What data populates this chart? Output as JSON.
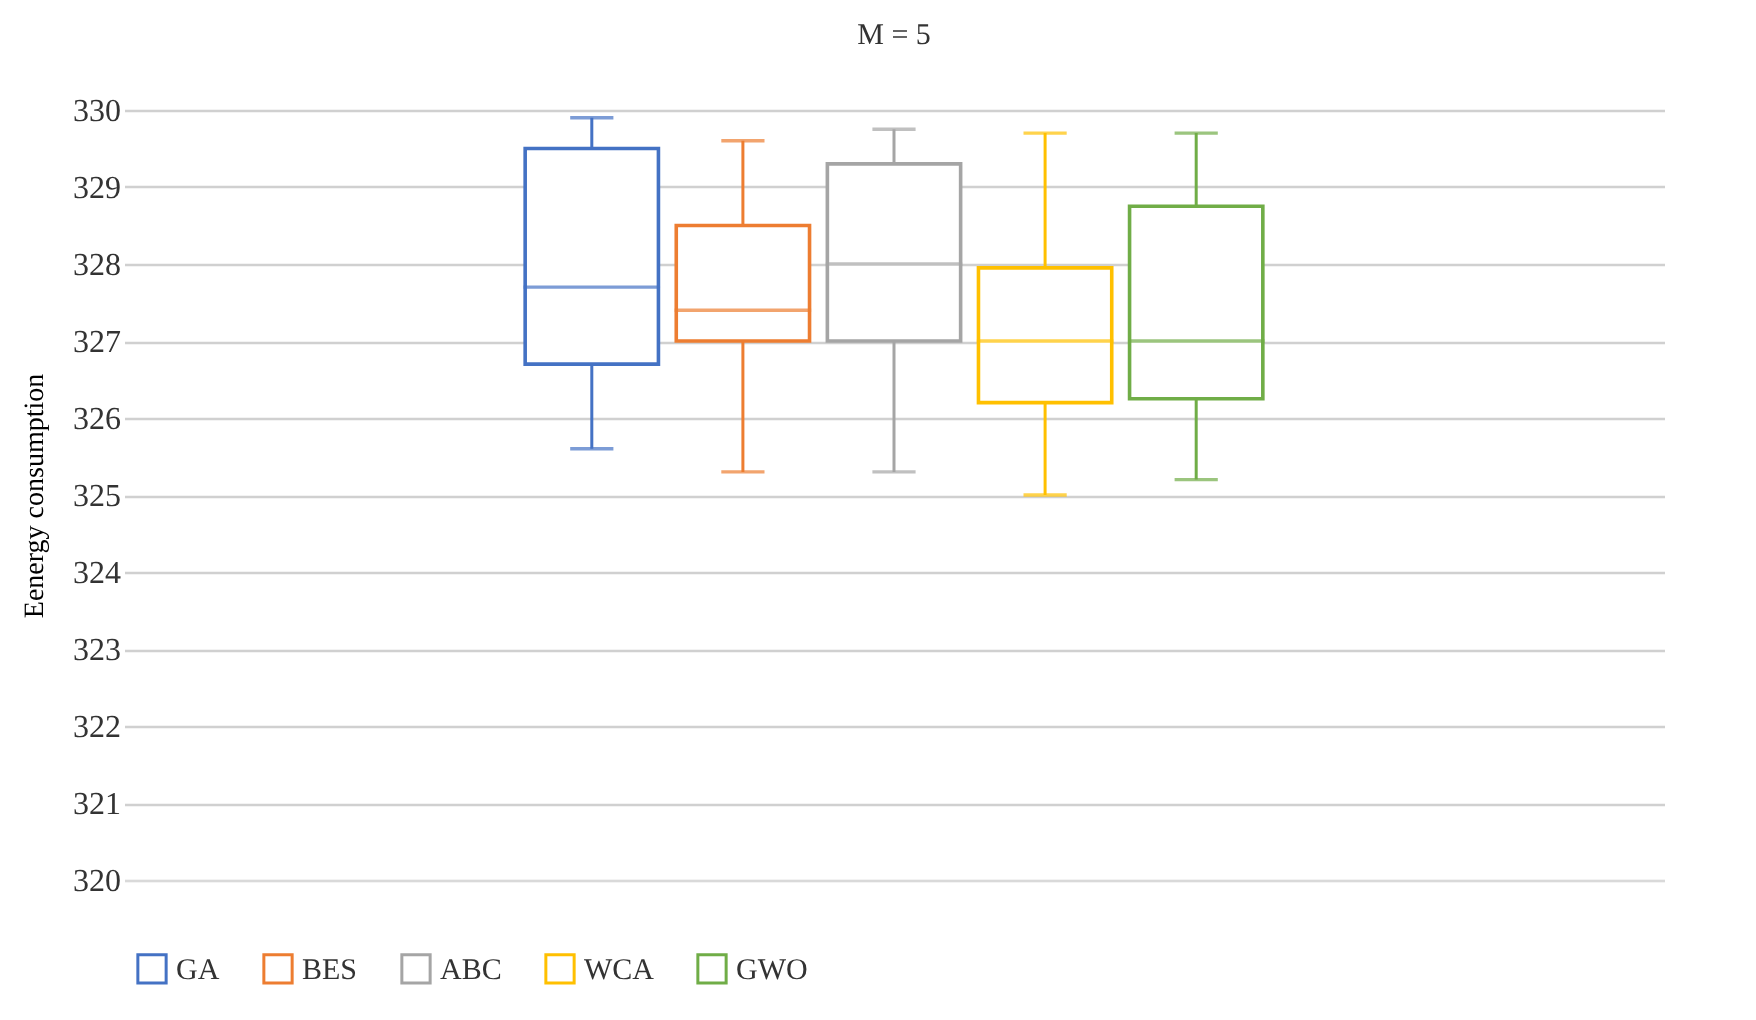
{
  "chart_data": {
    "type": "box",
    "title": "M = 5",
    "ylabel": "Eenergy consumption",
    "categories": [
      null
    ],
    "series": [
      {
        "name": "GA",
        "color": "#4472c4",
        "boxes": [
          {
            "low": 325.6,
            "q1": 326.7,
            "median": 327.7,
            "q3": 329.5,
            "high": 329.9
          }
        ]
      },
      {
        "name": "BES",
        "color": "#ed7d31",
        "boxes": [
          {
            "low": 325.3,
            "q1": 327.0,
            "median": 327.4,
            "q3": 328.5,
            "high": 329.6
          }
        ]
      },
      {
        "name": "ABC",
        "color": "#a5a5a5",
        "boxes": [
          {
            "low": 325.3,
            "q1": 327.0,
            "median": 328.0,
            "q3": 329.3,
            "high": 329.75
          }
        ]
      },
      {
        "name": "WCA",
        "color": "#ffc000",
        "boxes": [
          {
            "low": 325.0,
            "q1": 326.2,
            "median": 327.0,
            "q3": 327.95,
            "high": 329.7
          }
        ]
      },
      {
        "name": "GWO",
        "color": "#70ad47",
        "boxes": [
          {
            "low": 325.2,
            "q1": 326.25,
            "median": 327.0,
            "q3": 328.75,
            "high": 329.7
          }
        ]
      }
    ],
    "ylim": [
      320,
      330
    ],
    "yticks": [
      320,
      321,
      322,
      323,
      324,
      325,
      326,
      327,
      328,
      329,
      330
    ],
    "grid": "y",
    "legend": "bottom",
    "tick_labels": "y"
  }
}
